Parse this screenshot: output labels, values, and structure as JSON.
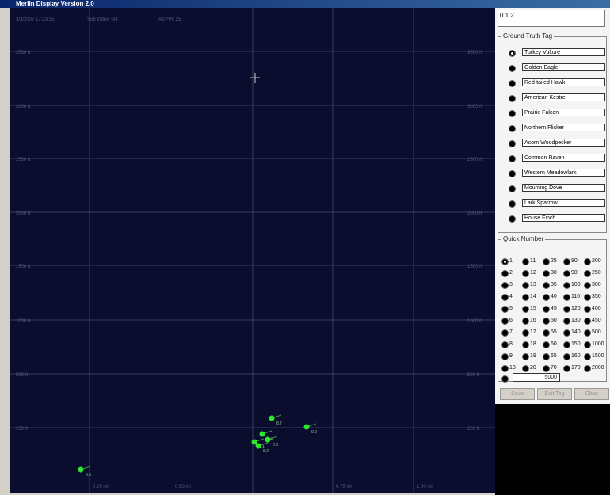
{
  "window": {
    "title": "Merlin Display Version 2.0"
  },
  "plot": {
    "status": [
      "3/3/2007 17:23:35",
      "Sub Index: 0/4",
      "Az/PPI: 25"
    ],
    "y_labels": [
      "3500 ft",
      "3000 ft",
      "2500 ft",
      "2000 ft",
      "1500 ft",
      "1000 ft",
      "500 ft",
      "250 ft"
    ],
    "x_labels": [
      "0.25 mi",
      "0.50 mi",
      "0.75 mi",
      "1.00 mi"
    ],
    "targets": [
      "8.7",
      "9.0",
      "8.4",
      "8.1",
      "8.8",
      "8.2",
      "8.5"
    ]
  },
  "panel": {
    "id_box": "0.1.2",
    "ground_truth": {
      "title": "Ground Truth Tag",
      "options": [
        "Turkey Vulture",
        "Golden Eagle",
        "Red-tailed Hawk",
        "American Kestrel",
        "Prairie Falcon",
        "Northern Flicker",
        "Acorn Woodpecker",
        "Common Raven",
        "Western Meadowlark",
        "Mourning Dove",
        "Lark Sparrow",
        "House Finch"
      ]
    },
    "quick_number": {
      "title": "Quick Number",
      "columns": [
        [
          "1",
          "2",
          "3",
          "4",
          "5",
          "6",
          "7",
          "8",
          "9",
          "10"
        ],
        [
          "11",
          "12",
          "13",
          "14",
          "15",
          "16",
          "17",
          "18",
          "19",
          "20"
        ],
        [
          "25",
          "30",
          "35",
          "40",
          "45",
          "50",
          "55",
          "60",
          "65",
          "70"
        ],
        [
          "80",
          "90",
          "100",
          "110",
          "120",
          "130",
          "140",
          "150",
          "160",
          "170"
        ],
        [
          "200",
          "250",
          "300",
          "350",
          "400",
          "450",
          "500",
          "1000",
          "1500",
          "2000"
        ]
      ],
      "custom": "5000"
    },
    "buttons": [
      "Save",
      "Edit Tag",
      "Clear"
    ]
  }
}
